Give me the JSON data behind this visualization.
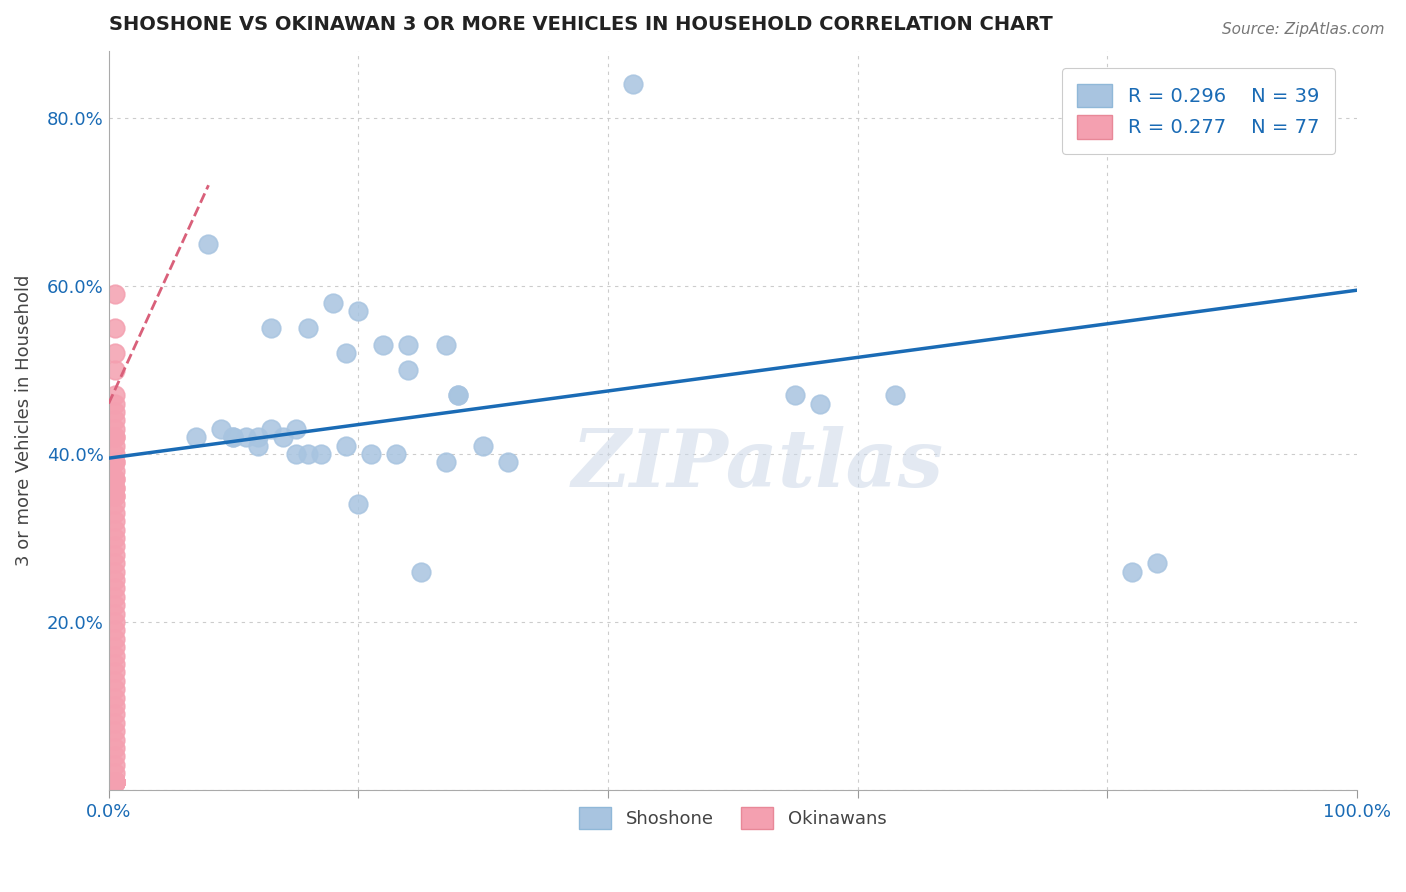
{
  "title": "SHOSHONE VS OKINAWAN 3 OR MORE VEHICLES IN HOUSEHOLD CORRELATION CHART",
  "source": "Source: ZipAtlas.com",
  "ylabel_text": "3 or more Vehicles in Household",
  "xlim": [
    0.0,
    1.0
  ],
  "ylim": [
    0.0,
    0.88
  ],
  "legend_shoshone_label": "R = 0.296    N = 39",
  "legend_okinawan_label": "R = 0.277    N = 77",
  "shoshone_color": "#a8c4e0",
  "okinawan_color": "#f4a0b0",
  "trendline_color": "#1a6bb5",
  "okinawan_trendline_color": "#d9607a",
  "watermark": "ZIPatlas",
  "shoshone_x": [
    0.42,
    0.08,
    0.18,
    0.2,
    0.22,
    0.24,
    0.27,
    0.28,
    0.13,
    0.16,
    0.19,
    0.24,
    0.28,
    0.09,
    0.1,
    0.11,
    0.12,
    0.13,
    0.14,
    0.15,
    0.16,
    0.17,
    0.19,
    0.21,
    0.23,
    0.27,
    0.07,
    0.1,
    0.12,
    0.15,
    0.3,
    0.32,
    0.55,
    0.57,
    0.63,
    0.82,
    0.84,
    0.2,
    0.25
  ],
  "shoshone_y": [
    0.84,
    0.65,
    0.58,
    0.57,
    0.53,
    0.53,
    0.53,
    0.47,
    0.55,
    0.55,
    0.52,
    0.5,
    0.47,
    0.43,
    0.42,
    0.42,
    0.42,
    0.43,
    0.42,
    0.43,
    0.4,
    0.4,
    0.41,
    0.4,
    0.4,
    0.39,
    0.42,
    0.42,
    0.41,
    0.4,
    0.41,
    0.39,
    0.47,
    0.46,
    0.47,
    0.26,
    0.27,
    0.34,
    0.26
  ],
  "okinawan_x": [
    0.005,
    0.005,
    0.005,
    0.005,
    0.005,
    0.005,
    0.005,
    0.005,
    0.005,
    0.005,
    0.005,
    0.005,
    0.005,
    0.005,
    0.005,
    0.005,
    0.005,
    0.005,
    0.005,
    0.005,
    0.005,
    0.005,
    0.005,
    0.005,
    0.005,
    0.005,
    0.005,
    0.005,
    0.005,
    0.005,
    0.005,
    0.005,
    0.005,
    0.005,
    0.005,
    0.005,
    0.005,
    0.005,
    0.005,
    0.005,
    0.005,
    0.005,
    0.005,
    0.005,
    0.005,
    0.005,
    0.005,
    0.005,
    0.005,
    0.005,
    0.005,
    0.005,
    0.005,
    0.005,
    0.005,
    0.005,
    0.005,
    0.005,
    0.005,
    0.005,
    0.005,
    0.005,
    0.005,
    0.005,
    0.005,
    0.005,
    0.005,
    0.005,
    0.005,
    0.005,
    0.005,
    0.005,
    0.005,
    0.005,
    0.005,
    0.005,
    0.005
  ],
  "okinawan_y": [
    0.59,
    0.55,
    0.52,
    0.5,
    0.47,
    0.46,
    0.45,
    0.44,
    0.43,
    0.42,
    0.42,
    0.41,
    0.4,
    0.39,
    0.39,
    0.38,
    0.37,
    0.37,
    0.36,
    0.36,
    0.35,
    0.35,
    0.34,
    0.33,
    0.32,
    0.31,
    0.3,
    0.29,
    0.28,
    0.27,
    0.26,
    0.25,
    0.24,
    0.23,
    0.22,
    0.21,
    0.2,
    0.19,
    0.18,
    0.17,
    0.16,
    0.15,
    0.14,
    0.13,
    0.12,
    0.11,
    0.1,
    0.09,
    0.08,
    0.07,
    0.06,
    0.05,
    0.04,
    0.03,
    0.02,
    0.01,
    0.01,
    0.01,
    0.01,
    0.01,
    0.01,
    0.01,
    0.01,
    0.01,
    0.01,
    0.01,
    0.01,
    0.01,
    0.01,
    0.01,
    0.01,
    0.01,
    0.01,
    0.01,
    0.01,
    0.01,
    0.01
  ],
  "trendline_x0": 0.0,
  "trendline_y0": 0.395,
  "trendline_x1": 1.0,
  "trendline_y1": 0.595,
  "okinawan_trend_x0": 0.0,
  "okinawan_trend_y0": 0.46,
  "okinawan_trend_x1": 0.08,
  "okinawan_trend_y1": 0.72
}
